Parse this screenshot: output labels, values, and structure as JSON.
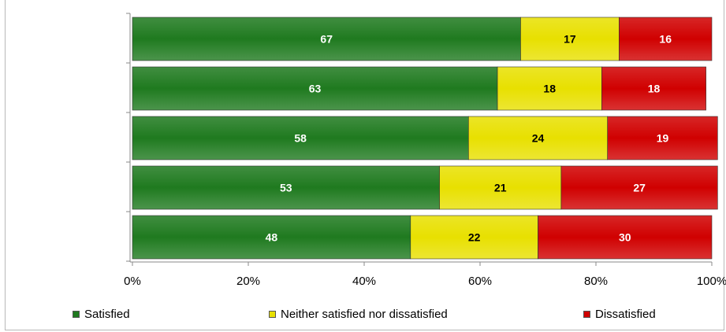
{
  "chart_data": {
    "type": "bar",
    "orientation": "horizontal",
    "stacked": true,
    "categories": [
      "",
      "",
      "",
      "",
      ""
    ],
    "series": [
      {
        "name": "Satisfied",
        "values": [
          67,
          63,
          58,
          53,
          48
        ],
        "color": "#1f7a1f",
        "label_color": "#ffffff"
      },
      {
        "name": "Neither satisfied nor dissatisfied",
        "values": [
          17,
          18,
          24,
          21,
          22
        ],
        "color": "#e8e000",
        "label_color": "#000000"
      },
      {
        "name": "Dissatisfied",
        "values": [
          16,
          18,
          19,
          27,
          30
        ],
        "color": "#d00000",
        "label_color": "#ffffff"
      }
    ],
    "x_ticks": [
      "0%",
      "20%",
      "40%",
      "60%",
      "80%",
      "100%"
    ],
    "xlim": [
      0,
      100
    ],
    "grid": false,
    "legend_position": "bottom"
  }
}
